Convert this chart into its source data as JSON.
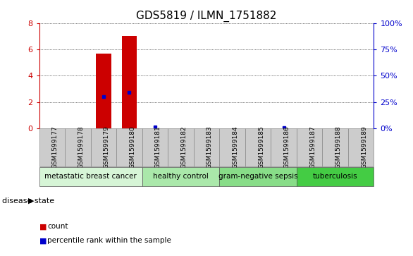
{
  "title": "GDS5819 / ILMN_1751882",
  "samples": [
    "GSM1599177",
    "GSM1599178",
    "GSM1599179",
    "GSM1599180",
    "GSM1599181",
    "GSM1599182",
    "GSM1599183",
    "GSM1599184",
    "GSM1599185",
    "GSM1599186",
    "GSM1599187",
    "GSM1599188",
    "GSM1599189"
  ],
  "red_values": [
    0,
    0,
    5.7,
    7.0,
    0,
    0,
    0,
    0,
    0,
    0,
    0,
    0,
    0
  ],
  "blue_values": [
    null,
    null,
    2.4,
    2.75,
    0.1,
    null,
    null,
    null,
    null,
    0.08,
    null,
    null,
    null
  ],
  "ylim_left": [
    0,
    8
  ],
  "ylim_right": [
    0,
    100
  ],
  "yticks_left": [
    0,
    2,
    4,
    6,
    8
  ],
  "yticks_right": [
    0,
    25,
    50,
    75,
    100
  ],
  "ytick_labels_left": [
    "0",
    "2",
    "4",
    "6",
    "8"
  ],
  "ytick_labels_right": [
    "0%",
    "25%",
    "50%",
    "75%",
    "100%"
  ],
  "groups": [
    {
      "label": "metastatic breast cancer",
      "start": 0,
      "end": 4,
      "color": "#d6f5d6"
    },
    {
      "label": "healthy control",
      "start": 4,
      "end": 7,
      "color": "#aae8aa"
    },
    {
      "label": "gram-negative sepsis",
      "start": 7,
      "end": 10,
      "color": "#88dd88"
    },
    {
      "label": "tuberculosis",
      "start": 10,
      "end": 13,
      "color": "#44cc44"
    }
  ],
  "disease_state_label": "disease state",
  "bar_color": "#cc0000",
  "dot_color": "#0000cc",
  "grid_color": "#000000",
  "bar_width": 0.6,
  "tick_color_left": "#cc0000",
  "tick_color_right": "#0000cc",
  "bg_color": "#ffffff",
  "sample_bg_color": "#cccccc",
  "legend": [
    {
      "label": "count",
      "color": "#cc0000"
    },
    {
      "label": "percentile rank within the sample",
      "color": "#0000cc"
    }
  ]
}
